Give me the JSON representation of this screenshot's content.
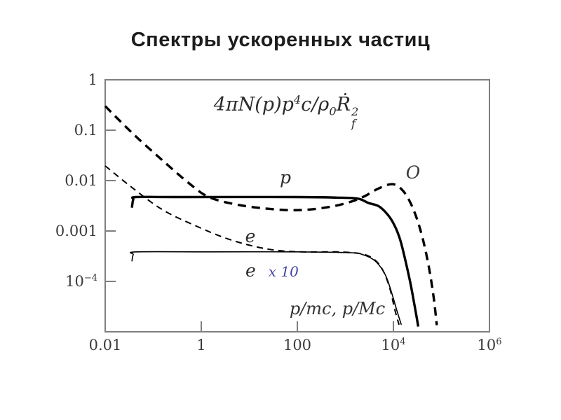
{
  "title": "Спектры ускоренных частиц",
  "formula": {
    "seg1": "4πN(p)p",
    "sup1": "4",
    "seg2": "c/ρ",
    "sub1": "0",
    "seg3": "Ṙ",
    "sup2": "2",
    "sub2": "f"
  },
  "curve_labels": {
    "p": "p",
    "O": "O",
    "e": "e",
    "e10_e": "e",
    "e10_mult": "x 10"
  },
  "colors": {
    "curve": "#000000",
    "axis": "#7f7f7f",
    "tick_text": "#3a3a3a",
    "multiplier_text": "#4343a0",
    "title_text": "#1c1c1c"
  },
  "chart_data": {
    "type": "line",
    "title": "4πN(p)p^4c/ρ_0·Ṙ_f^2  (formula shown inside plot)",
    "xlabel": "p/mc, p/Mc",
    "ylabel": "",
    "x_scale": "log",
    "y_scale": "log",
    "xlim": [
      0.01,
      1000000
    ],
    "ylim": [
      1e-05,
      1
    ],
    "grid": false,
    "legend_position": "inline-labels",
    "x_ticks": [
      {
        "label": "0.01",
        "value": 0.01
      },
      {
        "label": "1",
        "value": 1
      },
      {
        "label": "100",
        "value": 100
      },
      {
        "label": "10^4",
        "value": 10000
      },
      {
        "label": "10^6",
        "value": 1000000
      }
    ],
    "y_ticks": [
      {
        "label": "1",
        "value": 1
      },
      {
        "label": "0.1",
        "value": 0.1
      },
      {
        "label": "0.01",
        "value": 0.01
      },
      {
        "label": "0.001",
        "value": 0.001
      },
      {
        "label": "10^−4",
        "value": 0.0001
      }
    ],
    "series": [
      {
        "name": "e x10",
        "style": "solid-thin",
        "points": [
          [
            0.036,
            0.00025
          ],
          [
            0.0384,
            0.00034
          ],
          [
            0.0454,
            0.000385
          ],
          [
            1.55,
            0.000385
          ],
          [
            100,
            0.000385
          ],
          [
            1290,
            0.00037
          ],
          [
            2520,
            0.00033
          ],
          [
            3970,
            0.000264
          ],
          [
            5560,
            0.000186
          ],
          [
            7300,
            0.000115
          ],
          [
            9360,
            5.65e-05
          ],
          [
            11800,
            2.65e-05
          ],
          [
            14600,
            1.38e-05
          ]
        ]
      },
      {
        "name": "p",
        "style": "solid-thick",
        "points": [
          [
            0.036,
            0.0029
          ],
          [
            0.0384,
            0.0042
          ],
          [
            0.044,
            0.00472
          ],
          [
            0.29,
            0.00472
          ],
          [
            100,
            0.00472
          ],
          [
            660,
            0.0046
          ],
          [
            1800,
            0.0044
          ],
          [
            3000,
            0.0036
          ],
          [
            4930,
            0.0031
          ],
          [
            7640,
            0.0021
          ],
          [
            10600,
            0.00128
          ],
          [
            13900,
            0.00066
          ],
          [
            17700,
            0.000264
          ],
          [
            22600,
            9.2e-05
          ],
          [
            27700,
            3.25e-05
          ],
          [
            32900,
            1.27e-05
          ]
        ]
      },
      {
        "name": "e",
        "style": "dashed-thin",
        "points": [
          [
            0.01,
            0.0196
          ],
          [
            0.032,
            0.008
          ],
          [
            0.15,
            0.0027
          ],
          [
            0.79,
            0.00125
          ],
          [
            4.25,
            0.00066
          ],
          [
            25,
            0.000435
          ],
          [
            120,
            0.000385
          ],
          [
            660,
            0.000385
          ],
          [
            1900,
            0.00036
          ],
          [
            3250,
            0.00031
          ],
          [
            4930,
            0.000224
          ],
          [
            6700,
            0.000135
          ],
          [
            8750,
            6.4e-05
          ],
          [
            10600,
            2.85e-05
          ],
          [
            13100,
            1.38e-05
          ]
        ]
      },
      {
        "name": "O",
        "style": "dashed-thick",
        "points": [
          [
            0.01,
            0.3
          ],
          [
            0.038,
            0.085
          ],
          [
            0.15,
            0.026
          ],
          [
            0.56,
            0.0088
          ],
          [
            1.45,
            0.0047
          ],
          [
            5.9,
            0.0033
          ],
          [
            32,
            0.0027
          ],
          [
            120,
            0.0026
          ],
          [
            470,
            0.003
          ],
          [
            1290,
            0.0038
          ],
          [
            2520,
            0.0049
          ],
          [
            4930,
            0.007
          ],
          [
            9700,
            0.0085
          ],
          [
            16000,
            0.0062
          ],
          [
            24800,
            0.003
          ],
          [
            37000,
            0.001
          ],
          [
            52000,
            0.00025
          ],
          [
            68000,
            5.3e-05
          ],
          [
            80000,
            1.35e-05
          ]
        ]
      }
    ]
  }
}
